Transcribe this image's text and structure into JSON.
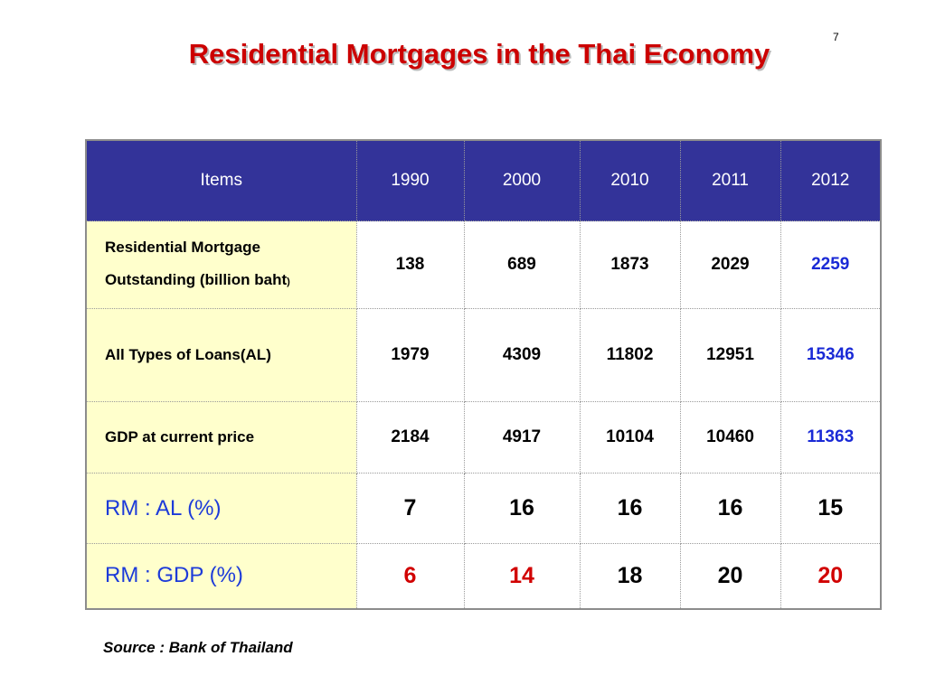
{
  "slide": {
    "page_number": "7",
    "title": "Residential Mortgages in the Thai Economy",
    "source": "Source : Bank of Thailand"
  },
  "table": {
    "headers": [
      "Items",
      "1990",
      "2000",
      "2010",
      "2011",
      "2012"
    ],
    "rows": [
      {
        "label_line1": "Residential Mortgage",
        "label_line2": "Outstanding (billion baht",
        "label_suffix": ")",
        "values": [
          "138",
          "689",
          "1873",
          "2029",
          "2259"
        ]
      },
      {
        "label": "All Types of  Loans(AL)",
        "values": [
          "1979",
          "4309",
          "11802",
          "12951",
          "15346"
        ]
      },
      {
        "label": "GDP at current price",
        "values": [
          "2184",
          "4917",
          "10104",
          "10460",
          "11363"
        ]
      },
      {
        "label": "RM : AL (%)",
        "values": [
          "7",
          "16",
          "16",
          "16",
          "15"
        ]
      },
      {
        "label": "RM : GDP (%)",
        "values": [
          "6",
          "14",
          "18",
          "20",
          "20"
        ]
      }
    ]
  },
  "colors": {
    "title_red": "#cc0000",
    "header_bg": "#333399",
    "label_bg": "#ffffcc",
    "highlight_blue": "#1a2ad6",
    "highlight_red": "#d10000"
  }
}
